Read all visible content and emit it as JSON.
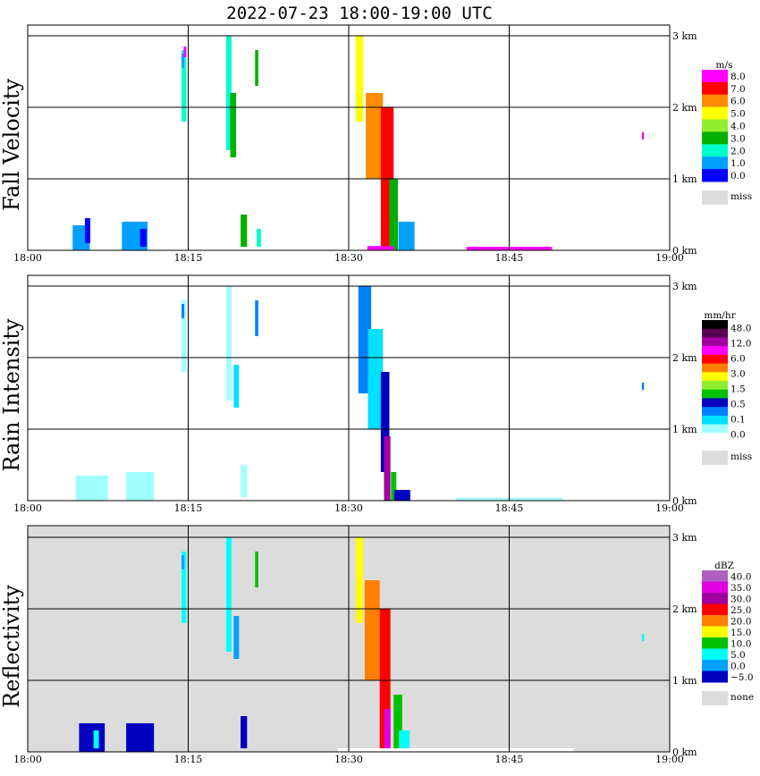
{
  "chart_data": {
    "type": "heatmap",
    "title": "2022-07-23   18:00-19:00 UTC",
    "x_ticks": [
      "18:00",
      "18:15",
      "18:30",
      "18:45",
      "19:00"
    ],
    "y_ticks": [
      "3 km",
      "2 km",
      "1 km",
      "0 km"
    ],
    "xlim": [
      "18:00",
      "19:00"
    ],
    "ylim_km": [
      0,
      3.0
    ],
    "grid": true,
    "missing_color": "#dcdcdc",
    "panels": [
      {
        "ylabel": "Fall Velocity",
        "unit": "m/s",
        "background": "#ffffff",
        "colorbar": {
          "labels": [
            "8.0",
            "7.0",
            "6.0",
            "5.0",
            "4.0",
            "3.0",
            "2.0",
            "1.0",
            "0.0"
          ],
          "colors": [
            "#ff00ff",
            "#ff0000",
            "#ff8c00",
            "#ffff00",
            "#90ee30",
            "#00b000",
            "#00ffcc",
            "#00a0ff",
            "#0000ff"
          ],
          "missing_label": "miss"
        }
      },
      {
        "ylabel": "Rain Intensity",
        "unit": "mm/hr",
        "background": "#ffffff",
        "colorbar": {
          "labels": [
            "48.0",
            "12.0",
            "6.0",
            "3.0",
            "1.5",
            "0.5",
            "0.1",
            "0.0"
          ],
          "colors": [
            "#000000",
            "#5a0050",
            "#a000a0",
            "#ff00ff",
            "#ff0000",
            "#ff8000",
            "#ffff00",
            "#90ee30",
            "#00c000",
            "#0000c0",
            "#0080ff",
            "#00e0ff",
            "#a0ffff",
            "#ffffff"
          ],
          "missing_label": "miss"
        }
      },
      {
        "ylabel": "Reflectivity",
        "unit": "dBZ",
        "background": "#dcdcdc",
        "colorbar": {
          "labels": [
            "40.0",
            "35.0",
            "30.0",
            "25.0",
            "20.0",
            "15.0",
            "10.0",
            "5.0",
            "0.0",
            "−5.0"
          ],
          "colors": [
            "#b060c0",
            "#e000e0",
            "#a000a0",
            "#ff0000",
            "#ff8000",
            "#ffff00",
            "#00c000",
            "#00ffff",
            "#00a0ff",
            "#0000c0"
          ],
          "missing_label": "none"
        }
      }
    ]
  }
}
